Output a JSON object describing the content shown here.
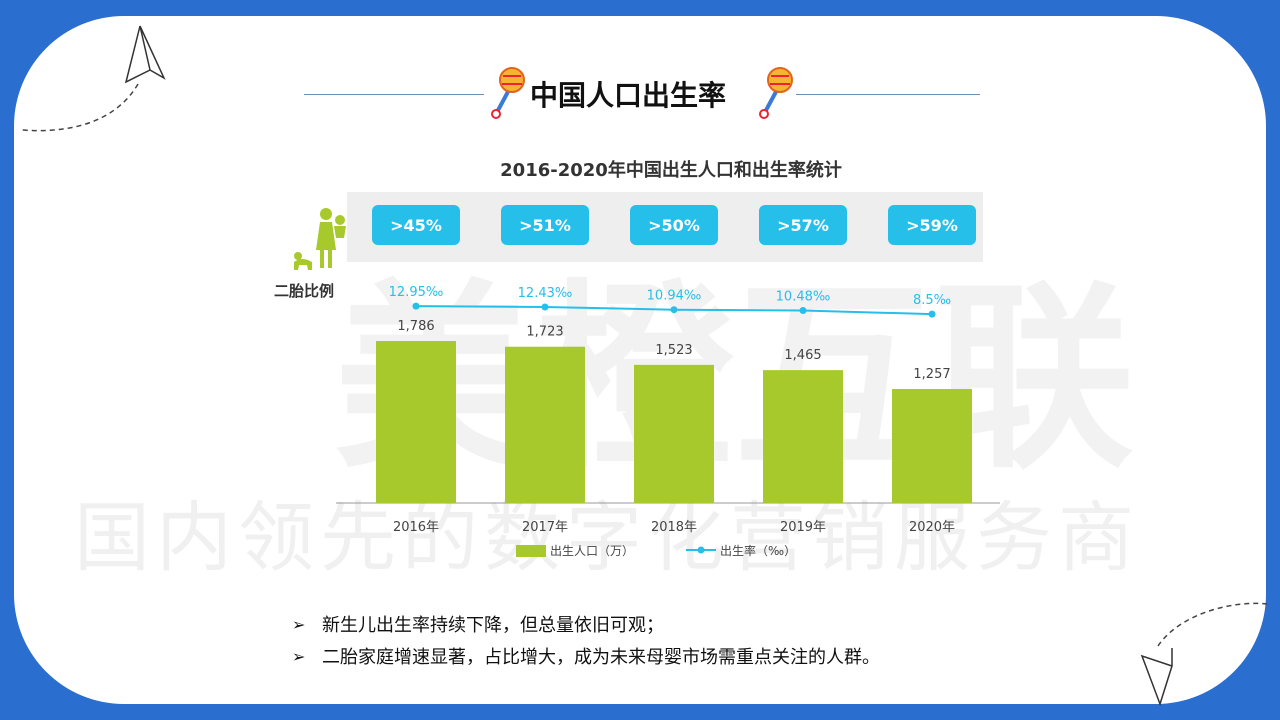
{
  "page": {
    "title": "中国人口出生率",
    "watermark_text": "国内领先的数字化营销服务商",
    "watermark_brand": "美橙互联"
  },
  "colors": {
    "frame": "#2a6fd0",
    "bar": "#a7c92b",
    "line": "#26bfea",
    "badge": "#26bfea"
  },
  "icons": [
    "paper-plane-icon",
    "rattle-icon",
    "mother-child-icon",
    "bullet-arrow-icon"
  ],
  "second_child": {
    "label": "二胎比例",
    "badges": [
      ">45%",
      ">51%",
      ">50%",
      ">57%",
      ">59%"
    ]
  },
  "bullets": [
    "新生儿出生率持续下降，但总量依旧可观；",
    "二胎家庭增速显著，占比增大，成为未来母婴市场需重点关注的人群。"
  ],
  "chart_data": {
    "type": "bar",
    "title": "2016-2020年中国出生人口和出生率统计",
    "categories": [
      "2016年",
      "2017年",
      "2018年",
      "2019年",
      "2020年"
    ],
    "series": [
      {
        "name": "出生人口（万）",
        "type": "bar",
        "values": [
          1786,
          1723,
          1523,
          1465,
          1257
        ],
        "labels": [
          "1,786",
          "1,723",
          "1,523",
          "1,465",
          "1,257"
        ]
      },
      {
        "name": "出生率（‰）",
        "type": "line",
        "values": [
          12.95,
          12.43,
          10.94,
          10.48,
          8.5
        ],
        "labels": [
          "12.95‰",
          "12.43‰",
          "10.94‰",
          "10.48‰",
          "8.5‰"
        ]
      }
    ],
    "bar_ylim": [
      0,
      2000
    ],
    "legend_position": "bottom",
    "grid": false
  }
}
